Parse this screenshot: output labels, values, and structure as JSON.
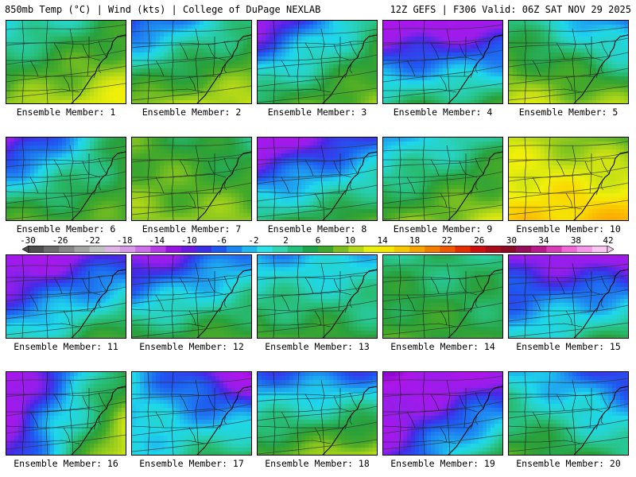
{
  "header": {
    "left": "850mb Temp (°C) | Wind (kts) | College of DuPage NEXLAB",
    "right": "12Z GEFS | F306 Valid: 06Z SAT NOV 29 2025"
  },
  "colorbar": {
    "labels": [
      "-30",
      "-26",
      "-22",
      "-18",
      "-14",
      "-10",
      "-6",
      "-2",
      "2",
      "6",
      "10",
      "14",
      "18",
      "22",
      "26",
      "30",
      "34",
      "38",
      "42"
    ],
    "colors": [
      "#4d4d4d",
      "#6a6a6a",
      "#878787",
      "#a4a4a4",
      "#c1c1c1",
      "#dcb4e6",
      "#d89be8",
      "#cd6fe8",
      "#b83ce6",
      "#9614e0",
      "#6b18e0",
      "#3a30e6",
      "#1f58ec",
      "#1a86ee",
      "#20b6ee",
      "#2fe0e6",
      "#34d6b2",
      "#22c07a",
      "#1ea44a",
      "#3fa82c",
      "#7cbe22",
      "#b6d81a",
      "#e6ee10",
      "#f6e800",
      "#f6c800",
      "#f6a400",
      "#f47e00",
      "#ee5800",
      "#e43000",
      "#cc1010",
      "#aa0c1a",
      "#8c0c28",
      "#960e5a",
      "#b81a8c",
      "#d83cb8",
      "#ee68d6",
      "#f698e8",
      "#f8c8f2"
    ]
  },
  "panels": [
    {
      "label": "Ensemble Member: 1"
    },
    {
      "label": "Ensemble Member: 2"
    },
    {
      "label": "Ensemble Member: 3"
    },
    {
      "label": "Ensemble Member: 4"
    },
    {
      "label": "Ensemble Member: 5"
    },
    {
      "label": "Ensemble Member: 6"
    },
    {
      "label": "Ensemble Member: 7"
    },
    {
      "label": "Ensemble Member: 8"
    },
    {
      "label": "Ensemble Member: 9"
    },
    {
      "label": "Ensemble Member: 10"
    },
    {
      "label": "Ensemble Member: 11"
    },
    {
      "label": "Ensemble Member: 12"
    },
    {
      "label": "Ensemble Member: 13"
    },
    {
      "label": "Ensemble Member: 14"
    },
    {
      "label": "Ensemble Member: 15"
    },
    {
      "label": "Ensemble Member: 16"
    },
    {
      "label": "Ensemble Member: 17"
    },
    {
      "label": "Ensemble Member: 18"
    },
    {
      "label": "Ensemble Member: 19"
    },
    {
      "label": "Ensemble Member: 20"
    }
  ],
  "panel_fields": [
    {
      "nw": -2,
      "ne": 4,
      "sw": 8,
      "se": 12
    },
    {
      "nw": -8,
      "ne": 2,
      "sw": 8,
      "se": 10
    },
    {
      "nw": -12,
      "ne": 2,
      "sw": 4,
      "se": 8
    },
    {
      "nw": -14,
      "ne": -12,
      "sw": 2,
      "se": 4
    },
    {
      "nw": 2,
      "ne": -6,
      "sw": 10,
      "se": 8
    },
    {
      "nw": -12,
      "ne": 4,
      "sw": 6,
      "se": 6
    },
    {
      "nw": 6,
      "ne": 2,
      "sw": 8,
      "se": 8
    },
    {
      "nw": -14,
      "ne": -6,
      "sw": 2,
      "se": 6
    },
    {
      "nw": -4,
      "ne": 2,
      "sw": 6,
      "se": 10
    },
    {
      "nw": 10,
      "ne": 6,
      "sw": 14,
      "se": 16
    },
    {
      "nw": -14,
      "ne": -8,
      "sw": -2,
      "se": 6
    },
    {
      "nw": -12,
      "ne": -4,
      "sw": 4,
      "se": 6
    },
    {
      "nw": -4,
      "ne": -2,
      "sw": 6,
      "se": 4
    },
    {
      "nw": 2,
      "ne": 2,
      "sw": 6,
      "se": 4
    },
    {
      "nw": -10,
      "ne": -12,
      "sw": -2,
      "se": 4
    },
    {
      "nw": -14,
      "ne": 4,
      "sw": -10,
      "se": 12
    },
    {
      "nw": -2,
      "ne": -14,
      "sw": -2,
      "se": 4
    },
    {
      "nw": -6,
      "ne": -6,
      "sw": 6,
      "se": 10
    },
    {
      "nw": -14,
      "ne": -12,
      "sw": -10,
      "se": 4
    },
    {
      "nw": -2,
      "ne": -8,
      "sw": 6,
      "se": 2
    }
  ]
}
